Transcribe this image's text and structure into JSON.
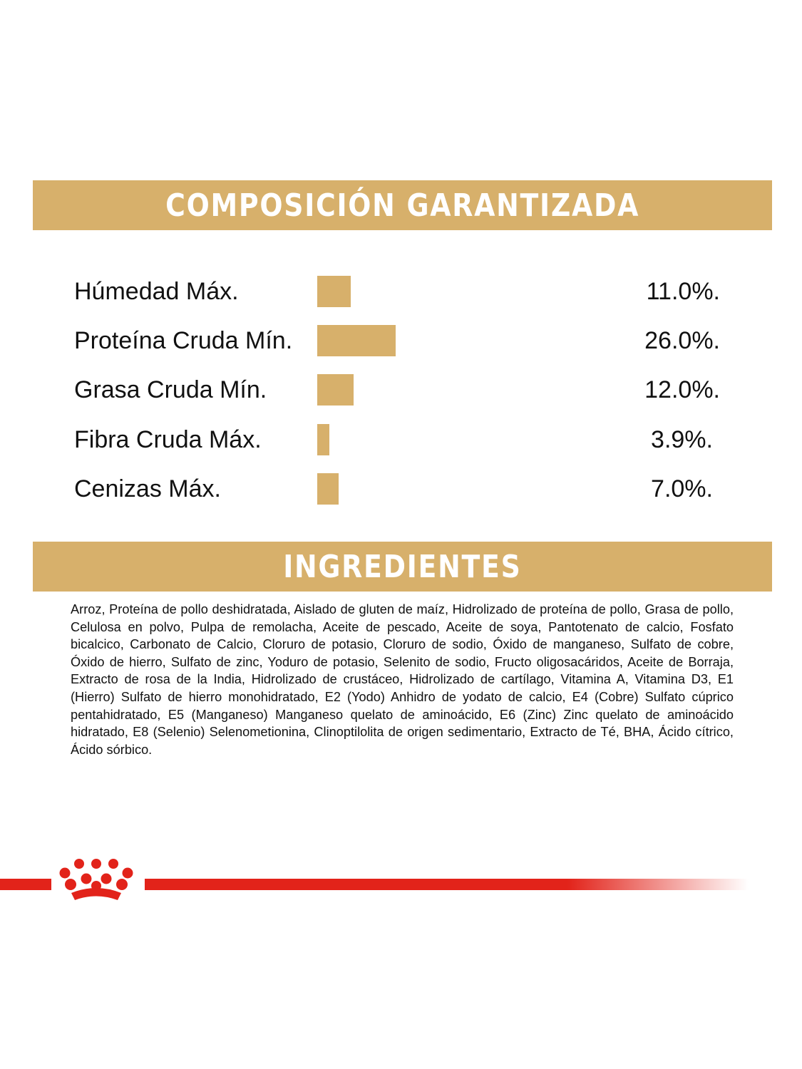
{
  "composition": {
    "title": "COMPOSICIÓN GARANTIZADA"
  },
  "chart_data": {
    "type": "bar",
    "orientation": "horizontal",
    "categories": [
      "Húmedad Máx.",
      "Proteína Cruda Mín.",
      "Grasa Cruda Mín.",
      "Fibra Cruda Máx.",
      "Cenizas Máx."
    ],
    "values": [
      11.0,
      26.0,
      12.0,
      3.9,
      7.0
    ],
    "value_labels": [
      "11.0%.",
      "26.0%.",
      "12.0%.",
      "3.9%.",
      "7.0%."
    ],
    "unit": "%",
    "xlim": [
      0,
      26
    ],
    "grid": false,
    "bar_color": "#d7b06b"
  },
  "ingredients": {
    "title": "INGREDIENTES",
    "text": "Arroz, Proteína de pollo deshidratada, Aislado de gluten de maíz, Hidrolizado de proteína de pollo, Grasa de pollo, Celulosa en polvo, Pulpa de remolacha, Aceite de pescado, Aceite de soya, Pantotenato de calcio, Fosfato bicalcico, Carbonato de Calcio, Cloruro de potasio, Cloruro de sodio, Óxido de manganeso, Sulfato de cobre, Óxido de hierro, Sulfato de zinc, Yoduro de potasio, Selenito de sodio, Fructo oligosacáridos, Aceite de Borraja, Extracto de rosa de la India, Hidrolizado de crustáceo, Hidrolizado de cartílago, Vitamina A, Vitamina D3, E1 (Hierro) Sulfato de hierro monohidratado, E2 (Yodo) Anhidro de yodato de calcio, E4 (Cobre) Sulfato cúprico pentahidratado, E5 (Manganeso) Manganeso quelato de aminoácido, E6 (Zinc) Zinc quelato de aminoácido hidratado, E8 (Selenio) Selenometionina, Clinoptilolita de origen sedimentario, Extracto de Té, BHA, Ácido cítrico, Ácido sórbico."
  },
  "brand": {
    "logo_icon": "crown-icon",
    "accent_color": "#e2231a"
  }
}
